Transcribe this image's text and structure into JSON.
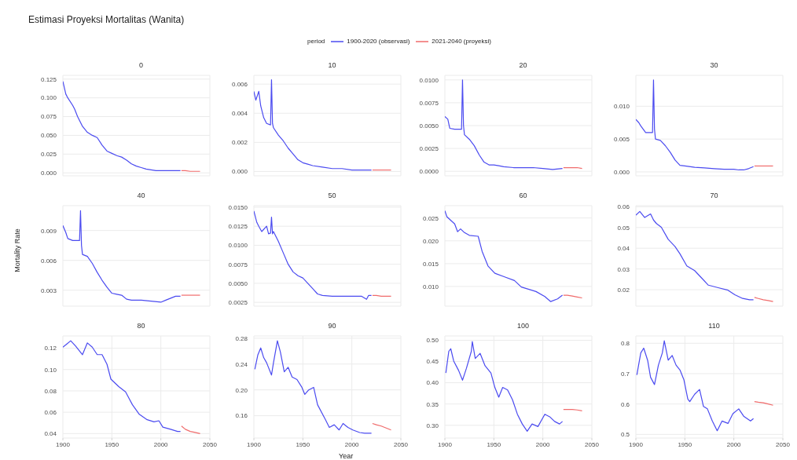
{
  "chart_data": [
    {
      "type": "line",
      "title": "0",
      "annotations": [
        "Estimasi Proyeksi Mortalitas (Wanita)"
      ],
      "legend": "top",
      "legend_title": "period",
      "grid": true,
      "tick_labels": "y",
      "xlim": [
        1900,
        2050
      ],
      "xticks": [
        1900,
        1950,
        2000,
        2050
      ],
      "ylim": [
        -0.004,
        0.13
      ],
      "yticks": [
        {
          "value": 0,
          "label": "0.000"
        },
        0.025,
        {
          "value": 0.05,
          "label": "0.050"
        },
        0.075,
        {
          "value": 0.1,
          "label": "0.100"
        },
        0.125
      ],
      "series": [
        {
          "name": "1900-2020 (observasi)",
          "color": "#4b4bf0",
          "x": [
            1900,
            1903,
            1905,
            1910,
            1912,
            1915,
            1920,
            1925,
            1930,
            1935,
            1940,
            1945,
            1950,
            1955,
            1960,
            1965,
            1970,
            1975,
            1980,
            1985,
            1990,
            1995,
            2000,
            2010,
            2020
          ],
          "values": [
            0.122,
            0.105,
            0.1,
            0.09,
            0.085,
            0.075,
            0.062,
            0.054,
            0.05,
            0.047,
            0.037,
            0.029,
            0.026,
            0.023,
            0.021,
            0.017,
            0.012,
            0.009,
            0.007,
            0.005,
            0.004,
            0.003,
            0.003,
            0.003,
            0.003
          ]
        },
        {
          "name": "2021-2040 (proyeksi)",
          "color": "#f06b6b",
          "x": [
            2021,
            2025,
            2030,
            2035,
            2040
          ],
          "values": [
            0.003,
            0.003,
            0.002,
            0.002,
            0.002
          ]
        }
      ]
    },
    {
      "type": "line",
      "title": "10",
      "grid": true,
      "tick_labels": "y",
      "xlim": [
        1900,
        2050
      ],
      "xticks": [
        1900,
        1950,
        2000,
        2050
      ],
      "ylim": [
        -0.0003,
        0.0066
      ],
      "yticks": [
        {
          "value": 0,
          "label": "0.000"
        },
        0.002,
        0.004,
        0.006
      ],
      "series": [
        {
          "color": "#4b4bf0",
          "x": [
            1900,
            1902,
            1905,
            1907,
            1910,
            1913,
            1917,
            1918,
            1919,
            1920,
            1925,
            1930,
            1935,
            1940,
            1945,
            1950,
            1955,
            1960,
            1970,
            1980,
            1990,
            2000,
            2020
          ],
          "values": [
            0.0055,
            0.0049,
            0.0055,
            0.0045,
            0.0037,
            0.0033,
            0.0032,
            0.0063,
            0.0033,
            0.003,
            0.0025,
            0.0021,
            0.0016,
            0.0012,
            0.0008,
            0.0006,
            0.0005,
            0.0004,
            0.0003,
            0.0002,
            0.0002,
            0.0001,
            0.0001
          ]
        },
        {
          "color": "#f06b6b",
          "x": [
            2021,
            2025,
            2030,
            2035,
            2040
          ],
          "values": [
            0.0001,
            0.0001,
            0.0001,
            0.0001,
            0.0001
          ]
        }
      ]
    },
    {
      "type": "line",
      "title": "20",
      "grid": true,
      "tick_labels": "y",
      "xlim": [
        1900,
        2050
      ],
      "xticks": [
        1900,
        1950,
        2000,
        2050
      ],
      "ylim": [
        -0.0005,
        0.0105
      ],
      "yticks": [
        {
          "value": 0,
          "label": "0.0000"
        },
        0.0025,
        {
          "value": 0.005,
          "label": "0.0050"
        },
        0.0075,
        {
          "value": 0.01,
          "label": "0.0100"
        }
      ],
      "series": [
        {
          "color": "#4b4bf0",
          "x": [
            1900,
            1903,
            1905,
            1910,
            1917,
            1918,
            1919,
            1920,
            1925,
            1930,
            1935,
            1940,
            1945,
            1950,
            1955,
            1960,
            1970,
            1980,
            1990,
            2000,
            2010,
            2020
          ],
          "values": [
            0.006,
            0.0057,
            0.0047,
            0.0046,
            0.0046,
            0.01,
            0.005,
            0.004,
            0.0035,
            0.0028,
            0.0018,
            0.001,
            0.0007,
            0.0007,
            0.0006,
            0.0005,
            0.0004,
            0.0004,
            0.0004,
            0.0003,
            0.0002,
            0.0003
          ]
        },
        {
          "color": "#f06b6b",
          "x": [
            2021,
            2025,
            2030,
            2035,
            2040
          ],
          "values": [
            0.0004,
            0.0004,
            0.0004,
            0.0004,
            0.0003
          ]
        }
      ]
    },
    {
      "type": "line",
      "title": "30",
      "grid": true,
      "tick_labels": "y",
      "xlim": [
        1900,
        2050
      ],
      "xticks": [
        1900,
        1950,
        2000,
        2050
      ],
      "ylim": [
        -0.0006,
        0.0147
      ],
      "yticks": [
        {
          "value": 0,
          "label": "0.000"
        },
        0.005,
        {
          "value": 0.01,
          "label": "0.010"
        }
      ],
      "series": [
        {
          "color": "#4b4bf0",
          "x": [
            1900,
            1903,
            1905,
            1910,
            1917,
            1918,
            1919,
            1920,
            1925,
            1930,
            1935,
            1940,
            1945,
            1950,
            1960,
            1970,
            1980,
            1990,
            2000,
            2005,
            2010,
            2015,
            2020
          ],
          "values": [
            0.008,
            0.0075,
            0.007,
            0.006,
            0.006,
            0.014,
            0.0065,
            0.005,
            0.0048,
            0.004,
            0.003,
            0.0018,
            0.001,
            0.0009,
            0.0007,
            0.0006,
            0.0005,
            0.0004,
            0.0004,
            0.0003,
            0.0003,
            0.0005,
            0.0008
          ]
        },
        {
          "color": "#f06b6b",
          "x": [
            2021,
            2025,
            2030,
            2035,
            2040
          ],
          "values": [
            0.0009,
            0.0009,
            0.0009,
            0.0009,
            0.0009
          ]
        }
      ]
    },
    {
      "type": "line",
      "title": "40",
      "ylabel": "Mortality Rate",
      "grid": true,
      "tick_labels": "y",
      "xlim": [
        1900,
        2050
      ],
      "xticks": [
        1900,
        1950,
        2000,
        2050
      ],
      "ylim": [
        0.0014,
        0.0115
      ],
      "yticks": [
        0.003,
        0.006,
        0.009
      ],
      "series": [
        {
          "color": "#4b4bf0",
          "x": [
            1900,
            1903,
            1905,
            1910,
            1917,
            1918,
            1919,
            1920,
            1925,
            1930,
            1935,
            1940,
            1945,
            1950,
            1955,
            1960,
            1965,
            1970,
            1980,
            1990,
            2000,
            2005,
            2010,
            2015,
            2020
          ],
          "values": [
            0.0095,
            0.0088,
            0.0082,
            0.008,
            0.008,
            0.011,
            0.0075,
            0.0066,
            0.0064,
            0.0057,
            0.0048,
            0.004,
            0.0033,
            0.0027,
            0.0026,
            0.0025,
            0.0021,
            0.002,
            0.002,
            0.0019,
            0.0018,
            0.002,
            0.0022,
            0.0024,
            0.0024
          ]
        },
        {
          "color": "#f06b6b",
          "x": [
            2021,
            2025,
            2030,
            2035,
            2040
          ],
          "values": [
            0.0025,
            0.0025,
            0.0025,
            0.0025,
            0.0025
          ]
        }
      ]
    },
    {
      "type": "line",
      "title": "50",
      "grid": true,
      "tick_labels": "y",
      "xlim": [
        1900,
        2050
      ],
      "xticks": [
        1900,
        1950,
        2000,
        2050
      ],
      "ylim": [
        0.002,
        0.0152
      ],
      "yticks": [
        0.0025,
        {
          "value": 0.005,
          "label": "0.0050"
        },
        0.0075,
        {
          "value": 0.01,
          "label": "0.0100"
        },
        0.0125,
        {
          "value": 0.015,
          "label": "0.0150"
        }
      ],
      "series": [
        {
          "color": "#4b4bf0",
          "x": [
            1900,
            1903,
            1905,
            1908,
            1913,
            1915,
            1917,
            1918,
            1919,
            1920,
            1925,
            1930,
            1935,
            1940,
            1945,
            1950,
            1955,
            1960,
            1965,
            1970,
            1980,
            1990,
            2000,
            2010,
            2015,
            2017,
            2020
          ],
          "values": [
            0.0145,
            0.013,
            0.0125,
            0.0118,
            0.0125,
            0.0115,
            0.0116,
            0.0137,
            0.0115,
            0.0118,
            0.0105,
            0.009,
            0.0075,
            0.0065,
            0.006,
            0.0057,
            0.005,
            0.0043,
            0.0036,
            0.0034,
            0.0033,
            0.0033,
            0.0033,
            0.0033,
            0.0029,
            0.0034,
            0.0034
          ]
        },
        {
          "color": "#f06b6b",
          "x": [
            2021,
            2025,
            2030,
            2035,
            2040
          ],
          "values": [
            0.0034,
            0.0034,
            0.0033,
            0.0033,
            0.0033
          ]
        }
      ]
    },
    {
      "type": "line",
      "title": "60",
      "grid": true,
      "tick_labels": "y",
      "xlim": [
        1900,
        2050
      ],
      "xticks": [
        1900,
        1950,
        2000,
        2050
      ],
      "ylim": [
        0.0057,
        0.0277
      ],
      "yticks": [
        {
          "value": 0.01,
          "label": "0.010"
        },
        0.015,
        {
          "value": 0.02,
          "label": "0.020"
        },
        0.025
      ],
      "series": [
        {
          "color": "#4b4bf0",
          "x": [
            1900,
            1902,
            1905,
            1910,
            1913,
            1916,
            1920,
            1925,
            1934,
            1938,
            1944,
            1951,
            1961,
            1971,
            1978,
            1993,
            2002,
            2008,
            2015,
            2020
          ],
          "values": [
            0.0266,
            0.0253,
            0.0247,
            0.0237,
            0.022,
            0.0226,
            0.0218,
            0.0212,
            0.021,
            0.0177,
            0.0145,
            0.0129,
            0.0121,
            0.0113,
            0.0099,
            0.0089,
            0.0078,
            0.0067,
            0.0073,
            0.0081
          ]
        },
        {
          "color": "#f06b6b",
          "x": [
            2021,
            2025,
            2030,
            2035,
            2040
          ],
          "values": [
            0.0081,
            0.0081,
            0.0079,
            0.0077,
            0.0075
          ]
        }
      ]
    },
    {
      "type": "line",
      "title": "70",
      "grid": true,
      "tick_labels": "y",
      "xlim": [
        1900,
        2050
      ],
      "xticks": [
        1900,
        1950,
        2000,
        2050
      ],
      "ylim": [
        0.0121,
        0.0605
      ],
      "yticks": [
        0.02,
        0.03,
        0.04,
        0.05,
        0.06
      ],
      "series": [
        {
          "color": "#4b4bf0",
          "x": [
            1900,
            1904,
            1909,
            1915,
            1918,
            1921,
            1926,
            1933,
            1940,
            1945,
            1952,
            1960,
            1967,
            1974,
            1984,
            1994,
            2001,
            2009,
            2016,
            2020
          ],
          "values": [
            0.0559,
            0.0577,
            0.0548,
            0.0565,
            0.0536,
            0.0519,
            0.0501,
            0.0443,
            0.0408,
            0.0373,
            0.0315,
            0.0292,
            0.0257,
            0.0222,
            0.021,
            0.0198,
            0.0176,
            0.0158,
            0.0152,
            0.0152
          ]
        },
        {
          "color": "#f06b6b",
          "x": [
            2021,
            2025,
            2030,
            2035,
            2040
          ],
          "values": [
            0.0163,
            0.0158,
            0.0152,
            0.0148,
            0.0143
          ]
        }
      ]
    },
    {
      "type": "line",
      "title": "80",
      "grid": true,
      "xlim": [
        1900,
        2050
      ],
      "xticks": [
        1900,
        1950,
        2000,
        2050
      ],
      "ylim": [
        0.0358,
        0.1315
      ],
      "yticks": [
        0.04,
        0.06,
        0.08,
        {
          "value": 0.1,
          "label": "0.10"
        },
        0.12
      ],
      "series": [
        {
          "color": "#4b4bf0",
          "x": [
            1900,
            1904,
            1908,
            1913,
            1920,
            1925,
            1930,
            1935,
            1940,
            1945,
            1949,
            1957,
            1964,
            1971,
            1978,
            1986,
            1993,
            1998,
            2002,
            2010,
            2017,
            2020
          ],
          "values": [
            0.121,
            0.124,
            0.127,
            0.122,
            0.114,
            0.125,
            0.121,
            0.114,
            0.114,
            0.105,
            0.091,
            0.084,
            0.079,
            0.067,
            0.058,
            0.053,
            0.051,
            0.052,
            0.046,
            0.044,
            0.042,
            0.042
          ]
        },
        {
          "color": "#f06b6b",
          "x": [
            2021,
            2025,
            2030,
            2035,
            2040
          ],
          "values": [
            0.047,
            0.044,
            0.042,
            0.041,
            0.04
          ]
        }
      ]
    },
    {
      "type": "line",
      "title": "90",
      "xlabel": "Year",
      "grid": true,
      "xlim": [
        1900,
        2050
      ],
      "xticks": [
        1900,
        1950,
        2000,
        2050
      ],
      "ylim": [
        0.1255,
        0.2835
      ],
      "yticks": [
        0.16,
        {
          "value": 0.2,
          "label": "0.20"
        },
        0.24,
        0.28
      ],
      "series": [
        {
          "color": "#4b4bf0",
          "x": [
            1901,
            1904,
            1907,
            1910,
            1913,
            1918,
            1920,
            1924,
            1927,
            1931,
            1935,
            1939,
            1944,
            1949,
            1952,
            1956,
            1961,
            1965,
            1973,
            1977,
            1982,
            1987,
            1991,
            1996,
            2001,
            2008,
            2013,
            2020
          ],
          "values": [
            0.232,
            0.254,
            0.265,
            0.25,
            0.242,
            0.223,
            0.242,
            0.276,
            0.259,
            0.228,
            0.235,
            0.22,
            0.216,
            0.204,
            0.193,
            0.2,
            0.204,
            0.177,
            0.154,
            0.142,
            0.146,
            0.138,
            0.148,
            0.142,
            0.138,
            0.134,
            0.133,
            0.133
          ]
        },
        {
          "color": "#f06b6b",
          "x": [
            2021,
            2025,
            2030,
            2035,
            2040
          ],
          "values": [
            0.148,
            0.146,
            0.144,
            0.141,
            0.138
          ]
        }
      ]
    },
    {
      "type": "line",
      "title": "100",
      "grid": true,
      "xlim": [
        1900,
        2050
      ],
      "xticks": [
        1900,
        1950,
        2000,
        2050
      ],
      "ylim": [
        0.27,
        0.51
      ],
      "yticks": [
        {
          "value": 0.3,
          "label": "0.30"
        },
        0.35,
        {
          "value": 0.4,
          "label": "0.40"
        },
        0.45,
        {
          "value": 0.5,
          "label": "0.50"
        }
      ],
      "series": [
        {
          "color": "#4b4bf0",
          "x": [
            1901,
            1904,
            1906,
            1909,
            1914,
            1918,
            1922,
            1927,
            1928,
            1931,
            1936,
            1941,
            1947,
            1951,
            1955,
            1959,
            1964,
            1969,
            1974,
            1979,
            1984,
            1989,
            1995,
            2002,
            2007,
            2012,
            2017,
            2020
          ],
          "values": [
            0.423,
            0.474,
            0.48,
            0.451,
            0.429,
            0.406,
            0.434,
            0.474,
            0.497,
            0.457,
            0.469,
            0.44,
            0.423,
            0.389,
            0.366,
            0.389,
            0.383,
            0.36,
            0.326,
            0.303,
            0.286,
            0.303,
            0.297,
            0.326,
            0.32,
            0.309,
            0.303,
            0.309
          ]
        },
        {
          "color": "#f06b6b",
          "x": [
            2021,
            2025,
            2030,
            2035,
            2040
          ],
          "values": [
            0.337,
            0.337,
            0.337,
            0.336,
            0.334
          ]
        }
      ]
    },
    {
      "type": "line",
      "title": "110",
      "grid": true,
      "xlim": [
        1900,
        2050
      ],
      "xticks": [
        1900,
        1950,
        2000,
        2050
      ],
      "ylim": [
        0.488,
        0.824
      ],
      "yticks": [
        0.5,
        0.6,
        0.7,
        0.8
      ],
      "series": [
        {
          "color": "#4b4bf0",
          "x": [
            1901,
            1905,
            1908,
            1912,
            1915,
            1919,
            1923,
            1927,
            1929,
            1933,
            1937,
            1941,
            1945,
            1949,
            1953,
            1955,
            1960,
            1965,
            1969,
            1973,
            1978,
            1983,
            1988,
            1994,
            1999,
            2005,
            2010,
            2017,
            2020
          ],
          "values": [
            0.696,
            0.768,
            0.784,
            0.744,
            0.688,
            0.664,
            0.728,
            0.768,
            0.808,
            0.744,
            0.76,
            0.728,
            0.712,
            0.68,
            0.616,
            0.608,
            0.632,
            0.648,
            0.592,
            0.584,
            0.544,
            0.512,
            0.544,
            0.536,
            0.568,
            0.584,
            0.56,
            0.544,
            0.552
          ]
        },
        {
          "color": "#f06b6b",
          "x": [
            2021,
            2025,
            2030,
            2035,
            2040
          ],
          "values": [
            0.608,
            0.606,
            0.604,
            0.6,
            0.596
          ]
        }
      ]
    }
  ]
}
